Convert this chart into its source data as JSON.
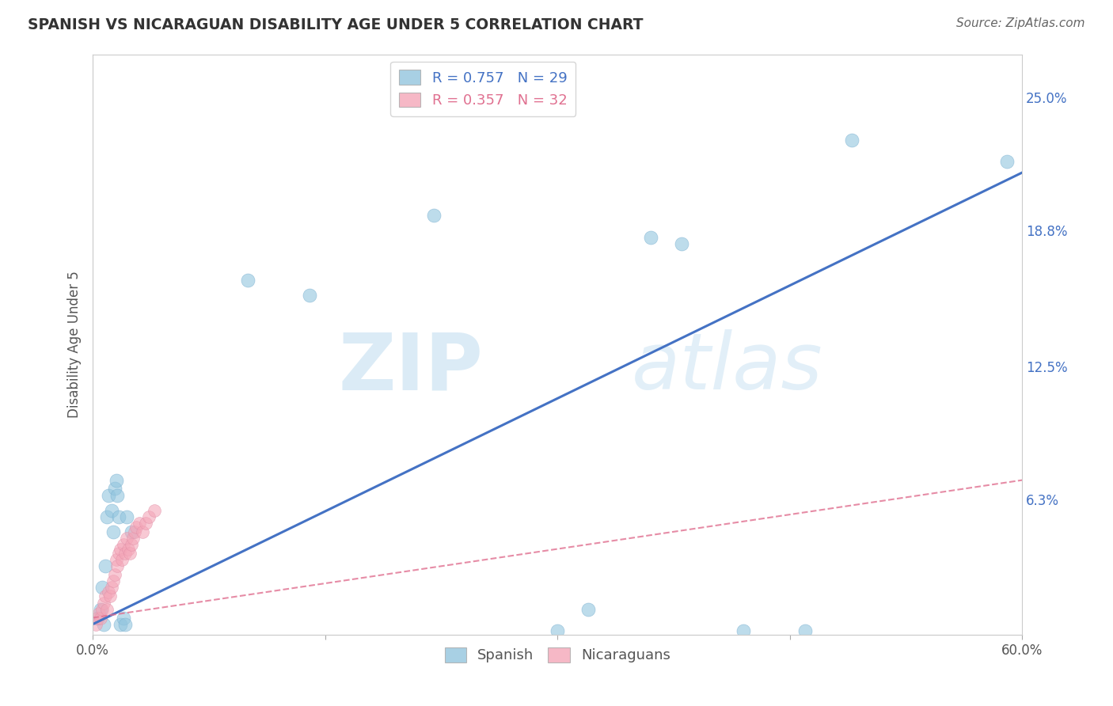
{
  "title": "SPANISH VS NICARAGUAN DISABILITY AGE UNDER 5 CORRELATION CHART",
  "source": "Source: ZipAtlas.com",
  "ylabel": "Disability Age Under 5",
  "xlabel": "",
  "watermark_zip": "ZIP",
  "watermark_atlas": "atlas",
  "xlim": [
    0.0,
    0.6
  ],
  "ylim": [
    0.0,
    0.27
  ],
  "xticks": [
    0.0,
    0.15,
    0.3,
    0.45,
    0.6
  ],
  "xticklabels": [
    "0.0%",
    "",
    "",
    "",
    "60.0%"
  ],
  "yticks_right": [
    0.0,
    0.063,
    0.125,
    0.188,
    0.25
  ],
  "ytick_right_labels": [
    "",
    "6.3%",
    "12.5%",
    "18.8%",
    "25.0%"
  ],
  "legend_blue_r": "R = 0.757",
  "legend_blue_n": "N = 29",
  "legend_pink_r": "R = 0.357",
  "legend_pink_n": "N = 32",
  "blue_color": "#92c5de",
  "blue_line_color": "#4472c4",
  "pink_color": "#f4a6b8",
  "pink_line_color": "#e07090",
  "blue_scatter": [
    [
      0.003,
      0.008
    ],
    [
      0.005,
      0.012
    ],
    [
      0.006,
      0.022
    ],
    [
      0.007,
      0.005
    ],
    [
      0.008,
      0.032
    ],
    [
      0.009,
      0.055
    ],
    [
      0.01,
      0.065
    ],
    [
      0.012,
      0.058
    ],
    [
      0.013,
      0.048
    ],
    [
      0.014,
      0.068
    ],
    [
      0.015,
      0.072
    ],
    [
      0.016,
      0.065
    ],
    [
      0.017,
      0.055
    ],
    [
      0.018,
      0.005
    ],
    [
      0.02,
      0.008
    ],
    [
      0.021,
      0.005
    ],
    [
      0.022,
      0.055
    ],
    [
      0.025,
      0.048
    ],
    [
      0.1,
      0.165
    ],
    [
      0.14,
      0.158
    ],
    [
      0.22,
      0.195
    ],
    [
      0.3,
      0.002
    ],
    [
      0.32,
      0.012
    ],
    [
      0.36,
      0.185
    ],
    [
      0.38,
      0.182
    ],
    [
      0.42,
      0.002
    ],
    [
      0.46,
      0.002
    ],
    [
      0.49,
      0.23
    ],
    [
      0.59,
      0.22
    ]
  ],
  "pink_scatter": [
    [
      0.002,
      0.005
    ],
    [
      0.003,
      0.008
    ],
    [
      0.004,
      0.01
    ],
    [
      0.005,
      0.008
    ],
    [
      0.006,
      0.012
    ],
    [
      0.007,
      0.015
    ],
    [
      0.008,
      0.018
    ],
    [
      0.009,
      0.012
    ],
    [
      0.01,
      0.02
    ],
    [
      0.011,
      0.018
    ],
    [
      0.012,
      0.022
    ],
    [
      0.013,
      0.025
    ],
    [
      0.014,
      0.028
    ],
    [
      0.015,
      0.035
    ],
    [
      0.016,
      0.032
    ],
    [
      0.017,
      0.038
    ],
    [
      0.018,
      0.04
    ],
    [
      0.019,
      0.035
    ],
    [
      0.02,
      0.042
    ],
    [
      0.021,
      0.038
    ],
    [
      0.022,
      0.045
    ],
    [
      0.023,
      0.04
    ],
    [
      0.024,
      0.038
    ],
    [
      0.025,
      0.042
    ],
    [
      0.026,
      0.045
    ],
    [
      0.027,
      0.048
    ],
    [
      0.028,
      0.05
    ],
    [
      0.03,
      0.052
    ],
    [
      0.032,
      0.048
    ],
    [
      0.034,
      0.052
    ],
    [
      0.036,
      0.055
    ],
    [
      0.04,
      0.058
    ]
  ],
  "blue_trend_x": [
    0.0,
    0.6
  ],
  "blue_trend_y": [
    0.005,
    0.215
  ],
  "pink_trend_x": [
    0.0,
    0.6
  ],
  "pink_trend_y": [
    0.008,
    0.072
  ],
  "grid_color": "#d0d0d0",
  "bg_color": "#ffffff"
}
